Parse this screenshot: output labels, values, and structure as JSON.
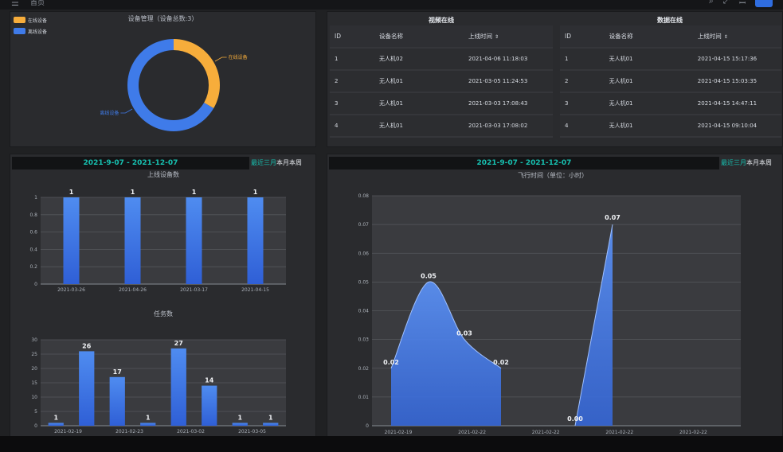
{
  "topbar": {
    "menu_glyph": "☰",
    "home_label": "首页"
  },
  "device_panel": {
    "title": "设备管理（设备总数:3）",
    "legend": [
      {
        "label": "在线设备",
        "color": "#f7ad3b"
      },
      {
        "label": "离线设备",
        "color": "#3f7be9"
      }
    ]
  },
  "video_online": {
    "title": "视频在线",
    "headers": [
      "ID",
      "设备名称",
      "上线时间"
    ],
    "rows": [
      [
        "1",
        "无人机02",
        "2021-04-06 11:18:03"
      ],
      [
        "2",
        "无人机01",
        "2021-03-05 11:24:53"
      ],
      [
        "3",
        "无人机01",
        "2021-03-03 17:08:43"
      ],
      [
        "4",
        "无人机01",
        "2021-03-03 17:08:02"
      ]
    ]
  },
  "data_online": {
    "title": "数据在线",
    "headers": [
      "ID",
      "设备名称",
      "上线时间"
    ],
    "rows": [
      [
        "1",
        "无人机01",
        "2021-04-15 15:17:36"
      ],
      [
        "2",
        "无人机01",
        "2021-04-15 15:03:35"
      ],
      [
        "3",
        "无人机01",
        "2021-04-15 14:47:11"
      ],
      [
        "4",
        "无人机01",
        "2021-04-15 09:10:04"
      ]
    ]
  },
  "left_stats": {
    "date_range": "2021-9-07 - 2021-12-07",
    "tabs": [
      "最近三月",
      "本月",
      "本周"
    ]
  },
  "right_stats": {
    "date_range": "2021-9-07 - 2021-12-07",
    "tabs": [
      "最近三月",
      "本月",
      "本周"
    ]
  },
  "chart_data": [
    {
      "type": "pie",
      "title": "设备管理（设备总数:3）",
      "style": "donut",
      "slices": [
        {
          "label": "在线设备",
          "value": 1,
          "color": "#f7ad3b"
        },
        {
          "label": "离线设备",
          "value": 2,
          "color": "#3f7be9"
        }
      ]
    },
    {
      "type": "bar",
      "title": "上线设备数",
      "categories": [
        "2021-03-26",
        "2021-04-26",
        "2021-03-17",
        "2021-04-15"
      ],
      "values": [
        1,
        1,
        1,
        1
      ],
      "ylim": [
        0,
        1
      ],
      "yticks": [
        0,
        0.2,
        0.4,
        0.6,
        0.8,
        1
      ],
      "grid": true
    },
    {
      "type": "bar",
      "title": "任务数",
      "values": [
        1,
        26,
        17,
        1,
        27,
        14,
        1,
        1
      ],
      "tick_labels": [
        "2021-02-19",
        "2021-02-23",
        "2021-03-02",
        "2021-03-05"
      ],
      "ylim": [
        0,
        30
      ],
      "yticks": [
        0,
        5,
        10,
        15,
        20,
        25,
        30
      ],
      "grid": true
    },
    {
      "type": "area",
      "title": "飞行时间（单位：小时）",
      "series": [
        {
          "values": [
            0.02,
            0.05,
            0.03,
            0.02
          ]
        },
        {
          "values": [
            0.0,
            0.07
          ]
        }
      ],
      "tick_labels": [
        "2021-02-19",
        "2021-02-22",
        "2021-02-22",
        "2021-02-22",
        "2021-02-22"
      ],
      "ylim": [
        0,
        0.08
      ],
      "yticks": [
        "0",
        "0.01",
        "0.02",
        "0.03",
        "0.04",
        "0.05",
        "0.06",
        "0.07",
        "0.08"
      ],
      "grid": true
    }
  ]
}
